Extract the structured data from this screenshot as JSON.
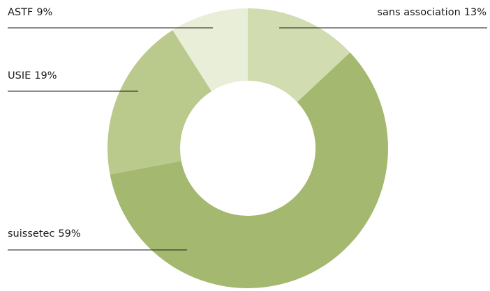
{
  "chart_data": {
    "type": "pie",
    "categories": [
      "sans association",
      "suissetec",
      "USIE",
      "ASTF"
    ],
    "values": [
      13,
      59,
      19,
      9
    ],
    "value_labels": [
      "13%",
      "59%",
      "19%",
      "9%"
    ],
    "colors": [
      "#d1dcb1",
      "#a4b96f",
      "#bac98c",
      "#e8eed8"
    ]
  }
}
